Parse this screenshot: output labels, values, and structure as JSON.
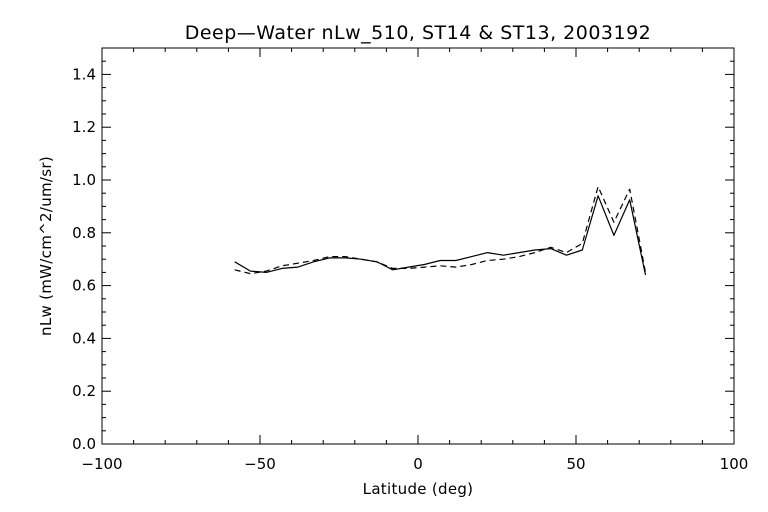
{
  "chart_data": {
    "type": "line",
    "title": "Deep—Water nLw_510, ST14 & ST13, 2003192",
    "xlabel": "Latitude (deg)",
    "ylabel": "nLw (mW/cm^2/um/sr)",
    "xlim": [
      -100,
      100
    ],
    "ylim": [
      0.0,
      1.5
    ],
    "x_ticks": [
      -100,
      -50,
      0,
      50,
      100
    ],
    "x_tick_labels": [
      "−100",
      "−50",
      "0",
      "50",
      "100"
    ],
    "y_ticks": [
      0.0,
      0.2,
      0.4,
      0.6,
      0.8,
      1.0,
      1.2,
      1.4
    ],
    "y_tick_labels": [
      "0.0",
      "0.2",
      "0.4",
      "0.6",
      "0.8",
      "1.0",
      "1.2",
      "1.4"
    ],
    "grid": false,
    "legend": "none",
    "series": [
      {
        "line_style": "solid",
        "color": "#000000",
        "x": [
          -58,
          -53,
          -48,
          -43,
          -38,
          -33,
          -28,
          -23,
          -18,
          -13,
          -8,
          -3,
          2,
          7,
          12,
          17,
          22,
          27,
          32,
          37,
          42,
          47,
          52,
          57,
          62,
          67,
          72
        ],
        "y": [
          0.69,
          0.655,
          0.65,
          0.665,
          0.67,
          0.69,
          0.705,
          0.705,
          0.7,
          0.69,
          0.66,
          0.67,
          0.68,
          0.695,
          0.695,
          0.71,
          0.725,
          0.715,
          0.725,
          0.735,
          0.74,
          0.715,
          0.735,
          0.94,
          0.79,
          0.925,
          0.64
        ]
      },
      {
        "line_style": "dashed",
        "color": "#000000",
        "x": [
          -58,
          -53,
          -48,
          -43,
          -38,
          -33,
          -28,
          -23,
          -18,
          -13,
          -8,
          -3,
          2,
          7,
          12,
          17,
          22,
          27,
          32,
          37,
          42,
          47,
          52,
          57,
          62,
          67,
          72
        ],
        "y": [
          0.66,
          0.645,
          0.655,
          0.675,
          0.685,
          0.695,
          0.71,
          0.71,
          0.7,
          0.69,
          0.665,
          0.665,
          0.67,
          0.675,
          0.67,
          0.68,
          0.695,
          0.7,
          0.71,
          0.725,
          0.745,
          0.725,
          0.76,
          0.975,
          0.84,
          0.965,
          0.65
        ]
      }
    ]
  }
}
